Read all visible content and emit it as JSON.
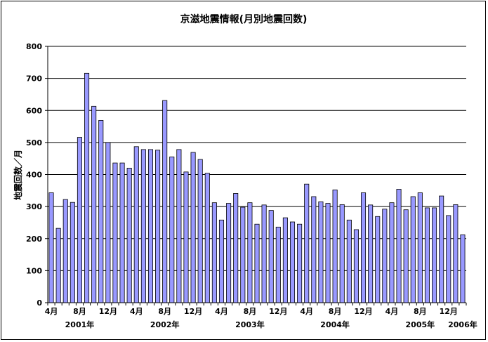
{
  "chart_data": {
    "type": "bar",
    "title": "京滋地震情報(月別地震回数)",
    "ylabel": "地震回数／月",
    "xlabel": "",
    "ylim": [
      0,
      800
    ],
    "yticks": [
      0,
      100,
      200,
      300,
      400,
      500,
      600,
      700,
      800
    ],
    "grid": true,
    "legend": "none",
    "bar_color": "#9999ff",
    "categories": [
      "2001-04",
      "2001-05",
      "2001-06",
      "2001-07",
      "2001-08",
      "2001-09",
      "2001-10",
      "2001-11",
      "2001-12",
      "2002-01",
      "2002-02",
      "2002-03",
      "2002-04",
      "2002-05",
      "2002-06",
      "2002-07",
      "2002-08",
      "2002-09",
      "2002-10",
      "2002-11",
      "2002-12",
      "2003-01",
      "2003-02",
      "2003-03",
      "2003-04",
      "2003-05",
      "2003-06",
      "2003-07",
      "2003-08",
      "2003-09",
      "2003-10",
      "2003-11",
      "2003-12",
      "2004-01",
      "2004-02",
      "2004-03",
      "2004-04",
      "2004-05",
      "2004-06",
      "2004-07",
      "2004-08",
      "2004-09",
      "2004-10",
      "2004-11",
      "2004-12",
      "2005-01",
      "2005-02",
      "2005-03",
      "2005-04",
      "2005-05",
      "2005-06",
      "2005-07",
      "2005-08",
      "2005-09",
      "2005-10",
      "2005-11",
      "2005-12",
      "2006-01",
      "2006-02"
    ],
    "values": [
      343,
      232,
      322,
      313,
      516,
      716,
      613,
      569,
      500,
      436,
      436,
      420,
      487,
      478,
      478,
      476,
      631,
      455,
      478,
      408,
      469,
      447,
      404,
      312,
      258,
      310,
      341,
      298,
      312,
      245,
      305,
      288,
      236,
      265,
      252,
      245,
      370,
      331,
      315,
      310,
      352,
      306,
      258,
      228,
      343,
      305,
      269,
      292,
      312,
      354,
      290,
      331,
      343,
      296,
      296,
      333,
      272,
      306,
      212
    ],
    "month_labels": [
      {
        "index": 0,
        "text": "4月"
      },
      {
        "index": 4,
        "text": "8月"
      },
      {
        "index": 8,
        "text": "12月"
      },
      {
        "index": 12,
        "text": "4月"
      },
      {
        "index": 16,
        "text": "8月"
      },
      {
        "index": 20,
        "text": "12月"
      },
      {
        "index": 24,
        "text": "4月"
      },
      {
        "index": 28,
        "text": "8月"
      },
      {
        "index": 32,
        "text": "12月"
      },
      {
        "index": 36,
        "text": "4月"
      },
      {
        "index": 40,
        "text": "8月"
      },
      {
        "index": 44,
        "text": "12月"
      },
      {
        "index": 48,
        "text": "4月"
      },
      {
        "index": 52,
        "text": "8月"
      },
      {
        "index": 56,
        "text": "12月"
      }
    ],
    "year_labels": [
      {
        "index": 4,
        "text": "2001年"
      },
      {
        "index": 16,
        "text": "2002年"
      },
      {
        "index": 28,
        "text": "2003年"
      },
      {
        "index": 40,
        "text": "2004年"
      },
      {
        "index": 52,
        "text": "2005年"
      },
      {
        "index": 58,
        "text": "2006年"
      }
    ]
  }
}
